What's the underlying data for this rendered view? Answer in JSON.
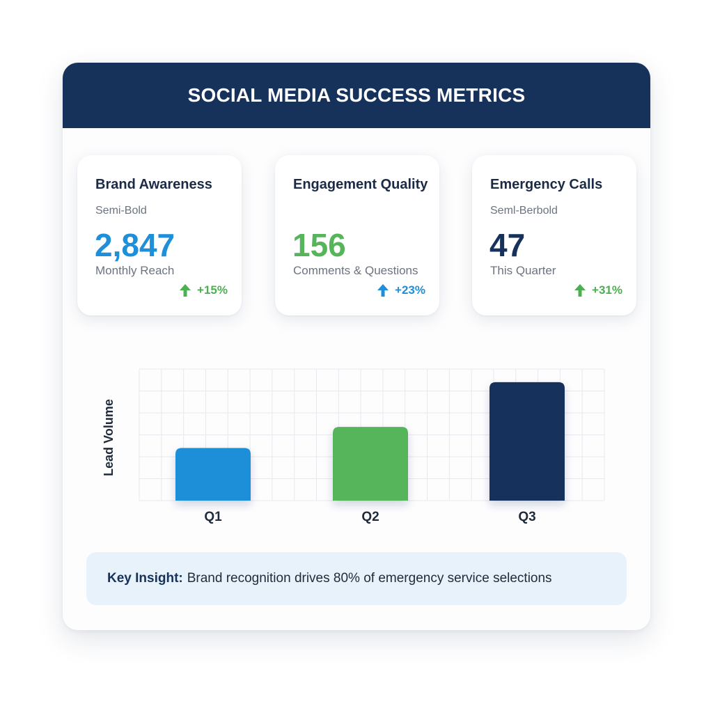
{
  "header": {
    "title": "SOCIAL MEDIA SUCCESS METRICS"
  },
  "cards": [
    {
      "title": "Brand Awareness",
      "subtitle": "Semi-Bold",
      "value": "2,847",
      "label": "Monthly Reach",
      "change": "+15%",
      "value_color": "#1e8fd8",
      "change_color": "#4caf50"
    },
    {
      "title": "Engagement Quality",
      "subtitle": "",
      "value": "156",
      "label": "Comments & Questions",
      "change": "+23%",
      "value_color": "#56b55a",
      "change_color": "#1e8fd8"
    },
    {
      "title": "Emergency Calls",
      "subtitle": "Seml-Berbold",
      "value": "47",
      "label": "This Quarter",
      "change": "+31%",
      "value_color": "#16325b",
      "change_color": "#4caf50"
    }
  ],
  "chart_data": {
    "type": "bar",
    "categories": [
      "Q1",
      "Q2",
      "Q3"
    ],
    "values": [
      40,
      56,
      90
    ],
    "ylabel": "Lead Volume",
    "xlabel": "",
    "ylim": [
      0,
      100
    ],
    "grid": true,
    "bar_colors": [
      "#1e8fd8",
      "#56b55a",
      "#16325b"
    ]
  },
  "insight": {
    "label": "Key Insight:",
    "text": "Brand recognition drives 80% of emergency service selections"
  }
}
